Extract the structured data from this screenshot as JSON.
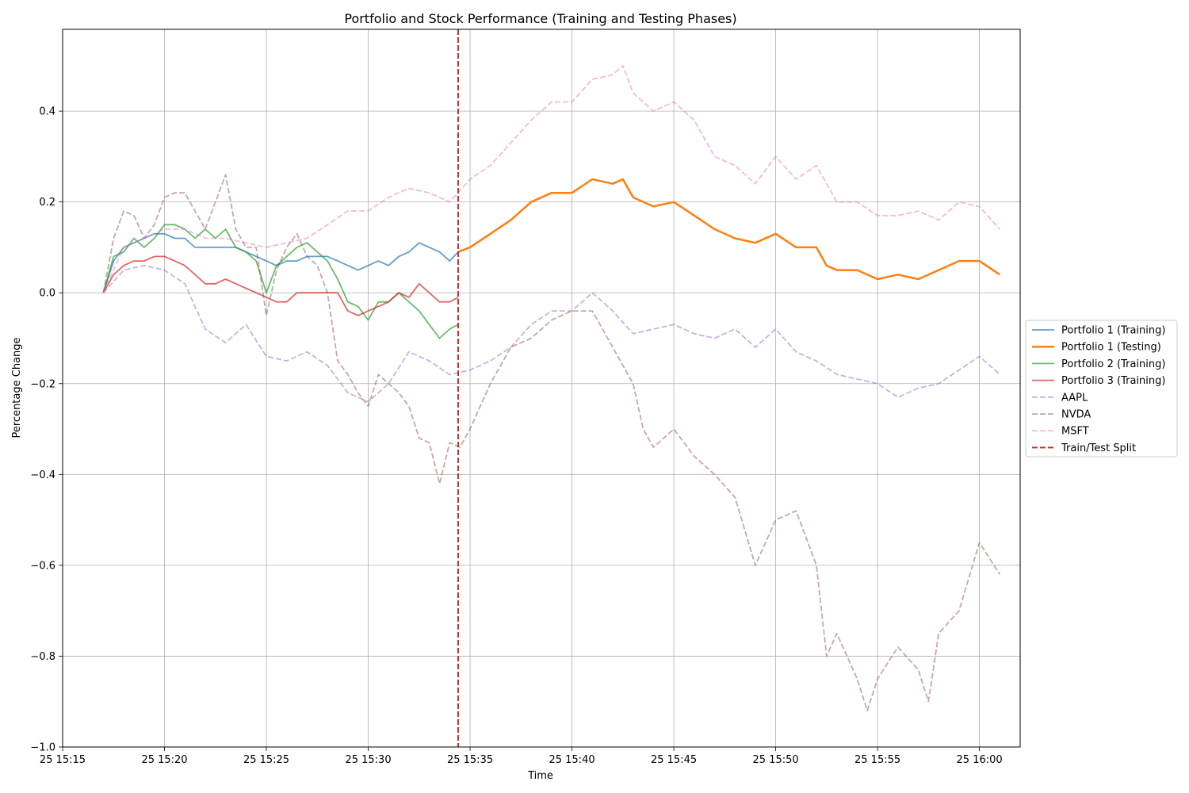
{
  "chart_data": {
    "type": "line",
    "title": "Portfolio and Stock Performance (Training and Testing Phases)",
    "xlabel": "Time",
    "ylabel": "Percentage Change",
    "xlim": [
      "25 15:15",
      "25 16:02"
    ],
    "ylim": [
      -1.0,
      0.58
    ],
    "x_ticks": [
      "25 15:15",
      "25 15:20",
      "25 15:25",
      "25 15:30",
      "25 15:35",
      "25 15:40",
      "25 15:45",
      "25 15:50",
      "25 15:55",
      "25 16:00"
    ],
    "y_ticks": [
      "−1.0",
      "−0.8",
      "−0.6",
      "−0.4",
      "−0.2",
      "0.0",
      "0.2",
      "0.4"
    ],
    "y_tick_values": [
      -1.0,
      -0.8,
      -0.6,
      -0.4,
      -0.2,
      0.0,
      0.2,
      0.4
    ],
    "grid": true,
    "legend_position": "right, outside plot",
    "split": {
      "name": "Train/Test Split",
      "x": "25 15:34:25",
      "color": "#d62728",
      "style": "dashed"
    },
    "series": [
      {
        "name": "Portfolio 1 (Training)",
        "color": "#1f77b4",
        "style": "solid",
        "x": [
          "25 15:17",
          "25 15:17:30",
          "25 15:18",
          "25 15:18:30",
          "25 15:19",
          "25 15:19:30",
          "25 15:20",
          "25 15:20:30",
          "25 15:21",
          "25 15:21:30",
          "25 15:22",
          "25 15:22:30",
          "25 15:23",
          "25 15:23:30",
          "25 15:24",
          "25 15:24:30",
          "25 15:25",
          "25 15:25:30",
          "25 15:26",
          "25 15:26:30",
          "25 15:27",
          "25 15:27:30",
          "25 15:28",
          "25 15:28:30",
          "25 15:29",
          "25 15:29:30",
          "25 15:30",
          "25 15:30:30",
          "25 15:31",
          "25 15:31:30",
          "25 15:32",
          "25 15:32:30",
          "25 15:33",
          "25 15:33:30",
          "25 15:34",
          "25 15:34:25"
        ],
        "values": [
          0.0,
          0.07,
          0.1,
          0.11,
          0.12,
          0.13,
          0.13,
          0.12,
          0.12,
          0.1,
          0.1,
          0.1,
          0.1,
          0.1,
          0.09,
          0.08,
          0.07,
          0.06,
          0.07,
          0.07,
          0.08,
          0.08,
          0.08,
          0.07,
          0.06,
          0.05,
          0.06,
          0.07,
          0.06,
          0.08,
          0.09,
          0.11,
          0.1,
          0.09,
          0.07,
          0.09
        ]
      },
      {
        "name": "Portfolio 1 (Testing)",
        "color": "#ff7f0e",
        "style": "solid",
        "x": [
          "25 15:34:25",
          "25 15:35",
          "25 15:36",
          "25 15:37",
          "25 15:38",
          "25 15:39",
          "25 15:40",
          "25 15:41",
          "25 15:42",
          "25 15:42:30",
          "25 15:43",
          "25 15:44",
          "25 15:45",
          "25 15:46",
          "25 15:47",
          "25 15:48",
          "25 15:49",
          "25 15:50",
          "25 15:51",
          "25 15:52",
          "25 15:52:30",
          "25 15:53",
          "25 15:54",
          "25 15:55",
          "25 15:56",
          "25 15:57",
          "25 15:58",
          "25 15:59",
          "25 16:00",
          "25 16:01"
        ],
        "values": [
          0.09,
          0.1,
          0.13,
          0.16,
          0.2,
          0.22,
          0.22,
          0.25,
          0.24,
          0.25,
          0.21,
          0.19,
          0.2,
          0.17,
          0.14,
          0.12,
          0.11,
          0.13,
          0.1,
          0.1,
          0.06,
          0.05,
          0.05,
          0.03,
          0.04,
          0.03,
          0.05,
          0.07,
          0.07,
          0.04
        ]
      },
      {
        "name": "Portfolio 2 (Training)",
        "color": "#2ca02c",
        "style": "solid",
        "x": [
          "25 15:17",
          "25 15:17:30",
          "25 15:18",
          "25 15:18:30",
          "25 15:19",
          "25 15:19:30",
          "25 15:20",
          "25 15:20:30",
          "25 15:21",
          "25 15:21:30",
          "25 15:22",
          "25 15:22:30",
          "25 15:23",
          "25 15:23:30",
          "25 15:24",
          "25 15:24:30",
          "25 15:25",
          "25 15:25:30",
          "25 15:26",
          "25 15:26:30",
          "25 15:27",
          "25 15:27:30",
          "25 15:28",
          "25 15:28:30",
          "25 15:29",
          "25 15:29:30",
          "25 15:30",
          "25 15:30:30",
          "25 15:31",
          "25 15:31:30",
          "25 15:32",
          "25 15:32:30",
          "25 15:33",
          "25 15:33:30",
          "25 15:34",
          "25 15:34:25"
        ],
        "values": [
          0.0,
          0.08,
          0.09,
          0.12,
          0.1,
          0.12,
          0.15,
          0.15,
          0.14,
          0.12,
          0.14,
          0.12,
          0.14,
          0.1,
          0.09,
          0.07,
          0.0,
          0.06,
          0.08,
          0.1,
          0.11,
          0.09,
          0.07,
          0.03,
          -0.02,
          -0.03,
          -0.06,
          -0.02,
          -0.02,
          0.0,
          -0.02,
          -0.04,
          -0.07,
          -0.1,
          -0.08,
          -0.07
        ]
      },
      {
        "name": "Portfolio 3 (Training)",
        "color": "#d62728",
        "style": "solid",
        "x": [
          "25 15:17",
          "25 15:17:30",
          "25 15:18",
          "25 15:18:30",
          "25 15:19",
          "25 15:19:30",
          "25 15:20",
          "25 15:20:30",
          "25 15:21",
          "25 15:21:30",
          "25 15:22",
          "25 15:22:30",
          "25 15:23",
          "25 15:23:30",
          "25 15:24",
          "25 15:24:30",
          "25 15:25",
          "25 15:25:30",
          "25 15:26",
          "25 15:26:30",
          "25 15:27",
          "25 15:27:30",
          "25 15:28",
          "25 15:28:30",
          "25 15:29",
          "25 15:29:30",
          "25 15:30",
          "25 15:30:30",
          "25 15:31",
          "25 15:31:30",
          "25 15:32",
          "25 15:32:30",
          "25 15:33",
          "25 15:33:30",
          "25 15:34",
          "25 15:34:25"
        ],
        "values": [
          0.0,
          0.04,
          0.06,
          0.07,
          0.07,
          0.08,
          0.08,
          0.07,
          0.06,
          0.04,
          0.02,
          0.02,
          0.03,
          0.02,
          0.01,
          0.0,
          -0.01,
          -0.02,
          -0.02,
          0.0,
          0.0,
          0.0,
          0.0,
          0.0,
          -0.04,
          -0.05,
          -0.04,
          -0.03,
          -0.02,
          0.0,
          -0.01,
          0.02,
          0.0,
          -0.02,
          -0.02,
          -0.01
        ]
      },
      {
        "name": "AAPL",
        "color": "#9467bd",
        "style": "dashed",
        "x": [
          "25 15:17",
          "25 15:18",
          "25 15:19",
          "25 15:20",
          "25 15:21",
          "25 15:22",
          "25 15:23",
          "25 15:24",
          "25 15:25",
          "25 15:26",
          "25 15:27",
          "25 15:28",
          "25 15:29",
          "25 15:30",
          "25 15:31",
          "25 15:32",
          "25 15:33",
          "25 15:34",
          "25 15:35",
          "25 15:36",
          "25 15:37",
          "25 15:38",
          "25 15:39",
          "25 15:40",
          "25 15:41",
          "25 15:42",
          "25 15:43",
          "25 15:44",
          "25 15:45",
          "25 15:46",
          "25 15:47",
          "25 15:48",
          "25 15:49",
          "25 15:50",
          "25 15:51",
          "25 15:52",
          "25 15:53",
          "25 15:54",
          "25 15:55",
          "25 15:56",
          "25 15:57",
          "25 15:58",
          "25 15:59",
          "25 16:00",
          "25 16:01"
        ],
        "values": [
          0.0,
          0.05,
          0.06,
          0.05,
          0.02,
          -0.08,
          -0.11,
          -0.07,
          -0.14,
          -0.15,
          -0.13,
          -0.16,
          -0.22,
          -0.24,
          -0.2,
          -0.13,
          -0.15,
          -0.18,
          -0.17,
          -0.15,
          -0.12,
          -0.07,
          -0.04,
          -0.04,
          0.0,
          -0.04,
          -0.09,
          -0.08,
          -0.07,
          -0.09,
          -0.1,
          -0.08,
          -0.12,
          -0.08,
          -0.13,
          -0.15,
          -0.18,
          -0.19,
          -0.2,
          -0.23,
          -0.21,
          -0.2,
          -0.17,
          -0.14,
          -0.18
        ]
      },
      {
        "name": "NVDA",
        "color": "#8c564b",
        "style": "dashed",
        "x": [
          "25 15:17",
          "25 15:17:30",
          "25 15:18",
          "25 15:18:30",
          "25 15:19",
          "25 15:19:30",
          "25 15:20",
          "25 15:20:30",
          "25 15:21",
          "25 15:21:30",
          "25 15:22",
          "25 15:22:30",
          "25 15:23",
          "25 15:23:30",
          "25 15:24",
          "25 15:24:30",
          "25 15:25",
          "25 15:25:30",
          "25 15:26",
          "25 15:26:30",
          "25 15:27",
          "25 15:27:30",
          "25 15:28",
          "25 15:28:30",
          "25 15:29",
          "25 15:29:30",
          "25 15:30",
          "25 15:30:30",
          "25 15:31",
          "25 15:31:30",
          "25 15:32",
          "25 15:32:30",
          "25 15:33",
          "25 15:33:30",
          "25 15:34",
          "25 15:34:30",
          "25 15:35",
          "25 15:36",
          "25 15:37",
          "25 15:38",
          "25 15:39",
          "25 15:40",
          "25 15:41",
          "25 15:42",
          "25 15:43",
          "25 15:43:30",
          "25 15:44",
          "25 15:45",
          "25 15:46",
          "25 15:47",
          "25 15:48",
          "25 15:49",
          "25 15:50",
          "25 15:51",
          "25 15:52",
          "25 15:52:30",
          "25 15:53",
          "25 15:54",
          "25 15:54:30",
          "25 15:55",
          "25 15:56",
          "25 15:57",
          "25 15:57:30",
          "25 15:58",
          "25 15:59",
          "25 16:00",
          "25 16:01"
        ],
        "values": [
          0.0,
          0.12,
          0.18,
          0.17,
          0.12,
          0.15,
          0.21,
          0.22,
          0.22,
          0.18,
          0.14,
          0.2,
          0.26,
          0.14,
          0.1,
          0.1,
          -0.05,
          0.05,
          0.1,
          0.13,
          0.08,
          0.06,
          0.0,
          -0.15,
          -0.18,
          -0.22,
          -0.25,
          -0.18,
          -0.2,
          -0.22,
          -0.25,
          -0.32,
          -0.33,
          -0.42,
          -0.33,
          -0.34,
          -0.3,
          -0.2,
          -0.12,
          -0.1,
          -0.06,
          -0.04,
          -0.04,
          -0.12,
          -0.2,
          -0.3,
          -0.34,
          -0.3,
          -0.36,
          -0.4,
          -0.45,
          -0.6,
          -0.5,
          -0.48,
          -0.6,
          -0.8,
          -0.75,
          -0.85,
          -0.92,
          -0.85,
          -0.78,
          -0.83,
          -0.9,
          -0.75,
          -0.7,
          -0.55,
          -0.62
        ]
      },
      {
        "name": "MSFT",
        "color": "#e377c2",
        "style": "dashed",
        "x": [
          "25 15:17",
          "25 15:18",
          "25 15:19",
          "25 15:20",
          "25 15:21",
          "25 15:22",
          "25 15:23",
          "25 15:24",
          "25 15:25",
          "25 15:26",
          "25 15:27",
          "25 15:28",
          "25 15:29",
          "25 15:30",
          "25 15:31",
          "25 15:32",
          "25 15:33",
          "25 15:34",
          "25 15:35",
          "25 15:36",
          "25 15:37",
          "25 15:38",
          "25 15:39",
          "25 15:40",
          "25 15:41",
          "25 15:42",
          "25 15:42:30",
          "25 15:43",
          "25 15:44",
          "25 15:45",
          "25 15:46",
          "25 15:47",
          "25 15:48",
          "25 15:49",
          "25 15:50",
          "25 15:51",
          "25 15:52",
          "25 15:53",
          "25 15:54",
          "25 15:55",
          "25 15:56",
          "25 15:57",
          "25 15:58",
          "25 15:59",
          "25 16:00",
          "25 16:01"
        ],
        "values": [
          0.0,
          0.1,
          0.12,
          0.14,
          0.14,
          0.12,
          0.12,
          0.11,
          0.1,
          0.11,
          0.12,
          0.15,
          0.18,
          0.18,
          0.21,
          0.23,
          0.22,
          0.2,
          0.25,
          0.28,
          0.33,
          0.38,
          0.42,
          0.42,
          0.47,
          0.48,
          0.5,
          0.44,
          0.4,
          0.42,
          0.38,
          0.3,
          0.28,
          0.24,
          0.3,
          0.25,
          0.28,
          0.2,
          0.2,
          0.17,
          0.17,
          0.18,
          0.16,
          0.2,
          0.19,
          0.14
        ]
      }
    ]
  }
}
